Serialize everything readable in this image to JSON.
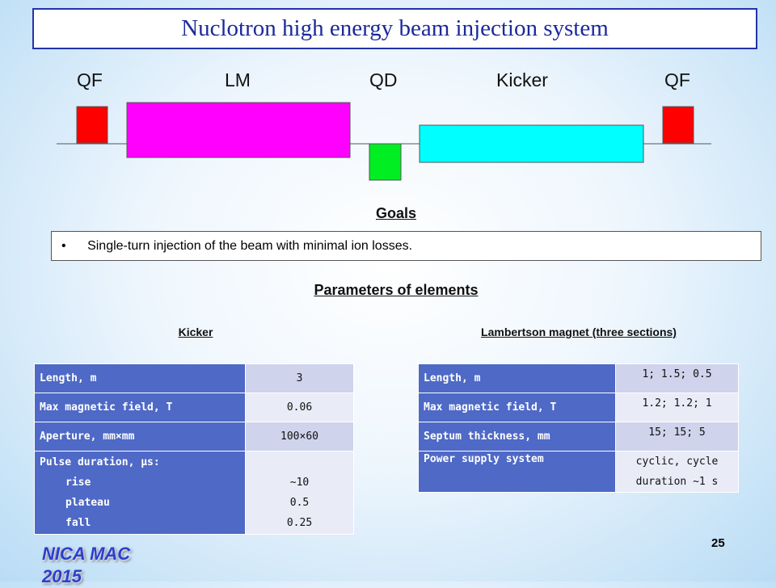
{
  "title": "Nuclotron high energy beam injection system",
  "diagram": {
    "elements": [
      "QF",
      "LM",
      "QD",
      "Kicker",
      "QF"
    ]
  },
  "goals": {
    "heading": "Goals",
    "items": [
      "Single-turn injection of the beam with minimal ion losses."
    ]
  },
  "parameters": {
    "heading": "Parameters of elements",
    "kicker": {
      "heading": "Kicker",
      "rows": [
        {
          "label": "Length, m",
          "value": "3"
        },
        {
          "label": "Max magnetic field, T",
          "value": "0.06"
        },
        {
          "label": "Aperture, mm×mm",
          "value": "100×60"
        },
        {
          "label": "Pulse duration, μs:",
          "sub": [
            {
              "name": "rise",
              "value": "~10"
            },
            {
              "name": "plateau",
              "value": "0.5"
            },
            {
              "name": "fall",
              "value": "0.25"
            }
          ]
        }
      ]
    },
    "lambertson": {
      "heading": "Lambertson magnet (three sections)",
      "rows": [
        {
          "label": "Length, m",
          "value": "1; 1.5; 0.5"
        },
        {
          "label": "Max magnetic field, T",
          "value": "1.2; 1.2; 1"
        },
        {
          "label": "Septum thickness, mm",
          "value": "15; 15; 5"
        },
        {
          "label": "Power supply system",
          "value": "cyclic, cycle duration ~1 s"
        }
      ]
    }
  },
  "footer": {
    "brand": "NICA MAC 2015",
    "page": "25"
  }
}
